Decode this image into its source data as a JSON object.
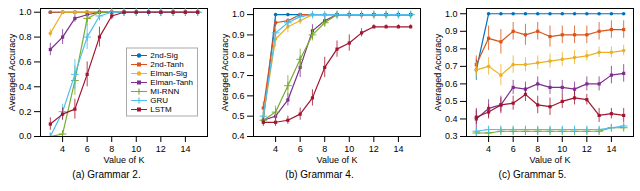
{
  "chart_data": [
    {
      "type": "line",
      "title": "(a) Grammar 2.",
      "xlabel": "Value of K",
      "ylabel": "Averaged Accuracy",
      "x": [
        3,
        4,
        5,
        6,
        7,
        8,
        9,
        10,
        11,
        12,
        13,
        14,
        15
      ],
      "xlim": [
        2.2,
        15.8
      ],
      "xticks": [
        4,
        6,
        8,
        10,
        12,
        14
      ],
      "ylim": [
        0.0,
        1.03
      ],
      "yticks": [
        {
          "value": 0.0,
          "label": "0.0"
        },
        0.2,
        0.4,
        0.6,
        0.8,
        {
          "value": 1.0,
          "label": "1.0"
        }
      ],
      "legend": "right",
      "series": [
        {
          "name": "2nd-Sig",
          "color": "#0072BD",
          "marker": "circle",
          "values": [
            1.0,
            1.0,
            1.0,
            1.0,
            1.0,
            1.0,
            1.0,
            1.0,
            1.0,
            1.0,
            1.0,
            1.0,
            1.0
          ],
          "errors": [
            0.0,
            0.0,
            0.0,
            0.0,
            0.0,
            0.0,
            0.0,
            0.0,
            0.0,
            0.0,
            0.0,
            0.0,
            0.0
          ]
        },
        {
          "name": "2nd-Tanh",
          "color": "#D95319",
          "marker": "square",
          "values": [
            1.0,
            1.0,
            1.0,
            1.0,
            1.0,
            1.0,
            1.0,
            1.0,
            1.0,
            1.0,
            1.0,
            1.0,
            1.0
          ],
          "errors": [
            0.0,
            0.0,
            0.0,
            0.0,
            0.0,
            0.0,
            0.0,
            0.0,
            0.0,
            0.0,
            0.0,
            0.0,
            0.0
          ]
        },
        {
          "name": "Elman-Sig",
          "color": "#EDB120",
          "marker": "circle",
          "values": [
            0.83,
            1.0,
            1.0,
            1.0,
            1.0,
            1.0,
            1.0,
            1.0,
            1.0,
            1.0,
            1.0,
            1.0,
            1.0
          ],
          "errors": [
            0.03,
            0.0,
            0.0,
            0.0,
            0.0,
            0.0,
            0.0,
            0.0,
            0.0,
            0.0,
            0.0,
            0.0,
            0.0
          ]
        },
        {
          "name": "Elman-Tanh",
          "color": "#7E2F8E",
          "marker": "square",
          "values": [
            0.7,
            0.8,
            0.95,
            0.98,
            1.0,
            1.0,
            1.0,
            1.0,
            1.0,
            1.0,
            1.0,
            1.0,
            1.0
          ],
          "errors": [
            0.05,
            0.06,
            0.03,
            0.01,
            0.0,
            0.0,
            0.0,
            0.0,
            0.0,
            0.0,
            0.0,
            0.0,
            0.0
          ]
        },
        {
          "name": "MI-RNN",
          "color": "#77AC30",
          "marker": "plus",
          "values": [
            0.0,
            0.02,
            0.45,
            0.95,
            1.0,
            1.0,
            1.0,
            1.0,
            1.0,
            1.0,
            1.0,
            1.0,
            1.0
          ],
          "errors": [
            0.0,
            0.02,
            0.12,
            0.06,
            0.0,
            0.0,
            0.0,
            0.0,
            0.0,
            0.0,
            0.0,
            0.0,
            0.0
          ]
        },
        {
          "name": "GRU",
          "color": "#4DBEEE",
          "marker": "plus",
          "values": [
            0.0,
            0.2,
            0.5,
            0.8,
            0.97,
            1.0,
            1.0,
            1.0,
            1.0,
            1.0,
            1.0,
            1.0,
            1.0
          ],
          "errors": [
            0.0,
            0.06,
            0.12,
            0.1,
            0.04,
            0.0,
            0.0,
            0.0,
            0.0,
            0.0,
            0.0,
            0.0,
            0.0
          ]
        },
        {
          "name": "LSTM",
          "color": "#A2142F",
          "marker": "square",
          "values": [
            0.1,
            0.18,
            0.22,
            0.5,
            0.8,
            0.97,
            1.0,
            1.0,
            1.0,
            1.0,
            1.0,
            1.0,
            1.0
          ],
          "errors": [
            0.05,
            0.05,
            0.08,
            0.1,
            0.08,
            0.03,
            0.01,
            0.01,
            0.01,
            0.01,
            0.01,
            0.01,
            0.01
          ]
        }
      ]
    },
    {
      "type": "line",
      "title": "(b) Grammar 4.",
      "xlabel": "Value of K",
      "ylabel": "Averaged Accuracy",
      "x": [
        3,
        4,
        5,
        6,
        7,
        8,
        9,
        10,
        11,
        12,
        13,
        14,
        15
      ],
      "xlim": [
        2.2,
        15.8
      ],
      "xticks": [
        4,
        6,
        8,
        10,
        12,
        14
      ],
      "ylim": [
        0.4,
        1.03
      ],
      "yticks": [
        0.4,
        0.5,
        0.6,
        0.7,
        0.8,
        0.9,
        {
          "value": 1.0,
          "label": "1.0"
        }
      ],
      "series": [
        {
          "name": "2nd-Sig",
          "color": "#0072BD",
          "marker": "circle",
          "values": [
            0.48,
            1.0,
            1.0,
            1.0,
            1.0,
            1.0,
            1.0,
            1.0,
            1.0,
            1.0,
            1.0,
            1.0,
            1.0
          ],
          "errors": [
            0.01,
            0.0,
            0.0,
            0.0,
            0.0,
            0.0,
            0.0,
            0.0,
            0.0,
            0.0,
            0.0,
            0.0,
            0.0
          ]
        },
        {
          "name": "2nd-Tanh",
          "color": "#D95319",
          "marker": "square",
          "values": [
            0.54,
            0.96,
            0.97,
            1.0,
            1.0,
            1.0,
            1.0,
            1.0,
            1.0,
            1.0,
            1.0,
            1.0,
            1.0
          ],
          "errors": [
            0.03,
            0.02,
            0.01,
            0.0,
            0.0,
            0.0,
            0.0,
            0.0,
            0.0,
            0.0,
            0.0,
            0.0,
            0.0
          ]
        },
        {
          "name": "Elman-Sig",
          "color": "#EDB120",
          "marker": "circle",
          "values": [
            0.5,
            0.88,
            0.94,
            0.97,
            1.0,
            1.0,
            1.0,
            1.0,
            1.0,
            1.0,
            1.0,
            1.0,
            1.0
          ],
          "errors": [
            0.02,
            0.04,
            0.03,
            0.02,
            0.0,
            0.0,
            0.0,
            0.0,
            0.0,
            0.0,
            0.0,
            0.0,
            0.0
          ]
        },
        {
          "name": "Elman-Tanh",
          "color": "#7E2F8E",
          "marker": "square",
          "values": [
            0.48,
            0.5,
            0.58,
            0.74,
            0.92,
            0.97,
            1.0,
            1.0,
            1.0,
            1.0,
            1.0,
            1.0,
            1.0
          ],
          "errors": [
            0.02,
            0.02,
            0.03,
            0.05,
            0.03,
            0.02,
            0.0,
            0.0,
            0.0,
            0.0,
            0.0,
            0.0,
            0.0
          ]
        },
        {
          "name": "MI-RNN",
          "color": "#77AC30",
          "marker": "plus",
          "values": [
            0.48,
            0.52,
            0.65,
            0.78,
            0.9,
            0.96,
            1.0,
            1.0,
            1.0,
            1.0,
            1.0,
            1.0,
            1.0
          ],
          "errors": [
            0.02,
            0.03,
            0.05,
            0.05,
            0.03,
            0.02,
            0.0,
            0.0,
            0.0,
            0.0,
            0.0,
            0.0,
            0.0
          ]
        },
        {
          "name": "GRU",
          "color": "#4DBEEE",
          "marker": "plus",
          "values": [
            0.5,
            0.91,
            0.96,
            0.99,
            1.0,
            1.0,
            1.0,
            1.0,
            1.0,
            1.0,
            1.0,
            1.0,
            1.0
          ],
          "errors": [
            0.02,
            0.02,
            0.02,
            0.01,
            0.0,
            0.0,
            0.0,
            0.0,
            0.0,
            0.0,
            0.0,
            0.0,
            0.0
          ]
        },
        {
          "name": "LSTM",
          "color": "#A2142F",
          "marker": "square",
          "values": [
            0.47,
            0.47,
            0.48,
            0.51,
            0.59,
            0.74,
            0.83,
            0.86,
            0.91,
            0.94,
            0.94,
            0.94,
            0.94
          ],
          "errors": [
            0.02,
            0.02,
            0.02,
            0.03,
            0.04,
            0.05,
            0.04,
            0.04,
            0.02,
            0.01,
            0.01,
            0.01,
            0.01
          ]
        }
      ]
    },
    {
      "type": "line",
      "title": "(c) Grammar 5.",
      "xlabel": "Value of K",
      "ylabel": "Averaged Accuracy",
      "x": [
        3,
        4,
        5,
        6,
        7,
        8,
        9,
        10,
        11,
        12,
        13,
        14,
        15
      ],
      "xlim": [
        2.2,
        15.8
      ],
      "xticks": [
        4,
        6,
        8,
        10,
        12,
        14
      ],
      "ylim": [
        0.3,
        1.03
      ],
      "yticks": [
        0.3,
        0.4,
        0.5,
        0.6,
        0.7,
        0.8,
        0.9,
        {
          "value": 1.0,
          "label": "1.0"
        }
      ],
      "series": [
        {
          "name": "2nd-Sig",
          "color": "#0072BD",
          "marker": "circle",
          "values": [
            0.68,
            1.0,
            1.0,
            1.0,
            1.0,
            1.0,
            1.0,
            1.0,
            1.0,
            1.0,
            1.0,
            1.0,
            1.0
          ],
          "errors": [
            0.06,
            0.0,
            0.0,
            0.0,
            0.0,
            0.0,
            0.0,
            0.0,
            0.0,
            0.0,
            0.0,
            0.0,
            0.0
          ]
        },
        {
          "name": "2nd-Tanh",
          "color": "#D95319",
          "marker": "square",
          "values": [
            0.71,
            0.86,
            0.84,
            0.9,
            0.88,
            0.9,
            0.87,
            0.88,
            0.88,
            0.88,
            0.9,
            0.91,
            0.91
          ],
          "errors": [
            0.05,
            0.07,
            0.07,
            0.05,
            0.06,
            0.05,
            0.06,
            0.05,
            0.05,
            0.05,
            0.05,
            0.05,
            0.05
          ]
        },
        {
          "name": "Elman-Sig",
          "color": "#EDB120",
          "marker": "circle",
          "values": [
            0.68,
            0.7,
            0.65,
            0.71,
            0.71,
            0.72,
            0.73,
            0.74,
            0.75,
            0.76,
            0.78,
            0.78,
            0.79
          ],
          "errors": [
            0.04,
            0.05,
            0.06,
            0.05,
            0.04,
            0.04,
            0.04,
            0.04,
            0.04,
            0.03,
            0.03,
            0.03,
            0.03
          ]
        },
        {
          "name": "Elman-Tanh",
          "color": "#7E2F8E",
          "marker": "square",
          "values": [
            0.4,
            0.46,
            0.48,
            0.58,
            0.57,
            0.6,
            0.58,
            0.58,
            0.57,
            0.6,
            0.6,
            0.65,
            0.66
          ],
          "errors": [
            0.06,
            0.05,
            0.05,
            0.04,
            0.04,
            0.04,
            0.04,
            0.04,
            0.04,
            0.04,
            0.04,
            0.05,
            0.05
          ]
        },
        {
          "name": "MI-RNN",
          "color": "#77AC30",
          "marker": "plus",
          "values": [
            0.32,
            0.32,
            0.33,
            0.33,
            0.33,
            0.33,
            0.33,
            0.33,
            0.33,
            0.33,
            0.33,
            0.35,
            0.35
          ],
          "errors": [
            0.01,
            0.01,
            0.01,
            0.01,
            0.01,
            0.01,
            0.01,
            0.01,
            0.01,
            0.01,
            0.01,
            0.01,
            0.01
          ]
        },
        {
          "name": "GRU",
          "color": "#4DBEEE",
          "marker": "plus",
          "values": [
            0.33,
            0.34,
            0.34,
            0.34,
            0.34,
            0.34,
            0.34,
            0.34,
            0.34,
            0.34,
            0.34,
            0.35,
            0.36
          ],
          "errors": [
            0.01,
            0.01,
            0.01,
            0.01,
            0.01,
            0.01,
            0.01,
            0.01,
            0.01,
            0.01,
            0.01,
            0.01,
            0.01
          ]
        },
        {
          "name": "LSTM",
          "color": "#A2142F",
          "marker": "square",
          "values": [
            0.41,
            0.44,
            0.48,
            0.49,
            0.54,
            0.48,
            0.47,
            0.5,
            0.52,
            0.51,
            0.42,
            0.43,
            0.42
          ],
          "errors": [
            0.04,
            0.04,
            0.04,
            0.04,
            0.04,
            0.05,
            0.05,
            0.04,
            0.04,
            0.03,
            0.04,
            0.03,
            0.04
          ]
        }
      ]
    }
  ]
}
